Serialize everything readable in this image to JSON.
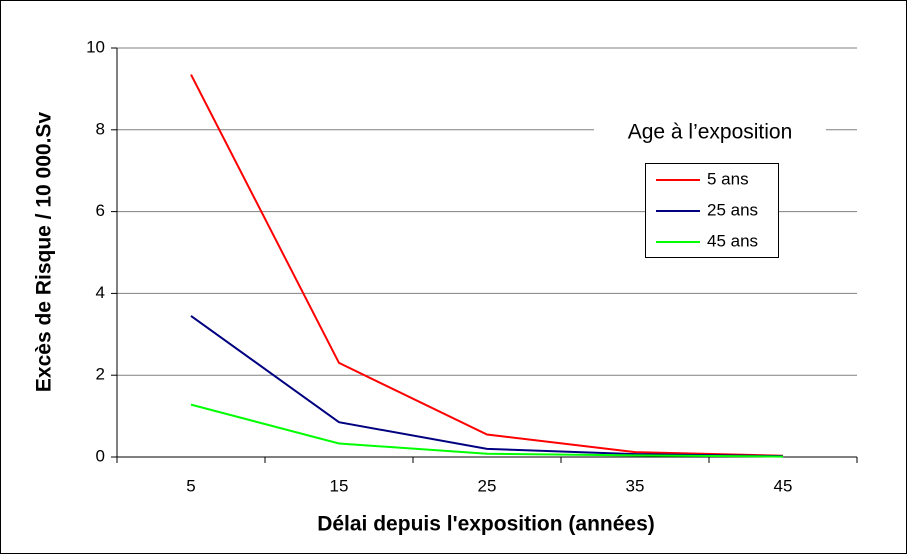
{
  "chart_data": {
    "type": "line",
    "xlabel": "Délai depuis l'exposition (années)",
    "ylabel": "Excès de Risque / 10 000.Sv",
    "legend_title": "Age à l’exposition",
    "categories": [
      "5",
      "15",
      "25",
      "35",
      "45"
    ],
    "series": [
      {
        "name": "5 ans",
        "color": "#ff0000",
        "values": [
          9.35,
          2.3,
          0.55,
          0.12,
          0.03
        ]
      },
      {
        "name": "25 ans",
        "color": "#000080",
        "values": [
          3.45,
          0.85,
          0.2,
          0.07,
          0.02
        ]
      },
      {
        "name": "45 ans",
        "color": "#00ff00",
        "values": [
          1.28,
          0.33,
          0.08,
          0.04,
          0.01
        ]
      }
    ],
    "ylim": [
      0,
      10
    ],
    "yticks": [
      0,
      2,
      4,
      6,
      8,
      10
    ],
    "grid": true,
    "legend": "upper right"
  }
}
